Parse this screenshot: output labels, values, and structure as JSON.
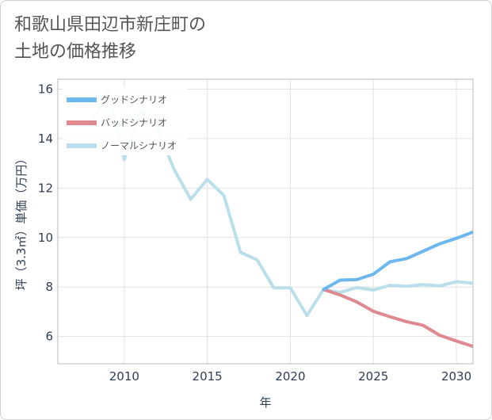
{
  "title_lines": [
    "和歌山県田辺市新庄町の",
    "土地の価格推移"
  ],
  "chart_data": {
    "type": "line",
    "xlabel": "年",
    "ylabel": "坪（3.3㎡）単価（万円）",
    "xlim": [
      2006,
      2031
    ],
    "ylim": [
      4.9,
      16.4
    ],
    "xticks": [
      2010,
      2015,
      2020,
      2025,
      2030
    ],
    "yticks": [
      6,
      8,
      10,
      12,
      14,
      16
    ],
    "grid": true,
    "legend_position": "top-left",
    "series": [
      {
        "name": "グッドシナリオ",
        "color": "#6cb8ee",
        "x": [
          2022,
          2023,
          2024,
          2025,
          2026,
          2027,
          2028,
          2029,
          2030,
          2031
        ],
        "y": [
          7.9,
          8.28,
          8.3,
          8.52,
          9.02,
          9.15,
          9.45,
          9.75,
          9.97,
          10.22
        ]
      },
      {
        "name": "バッドシナリオ",
        "color": "#de8a90",
        "x": [
          2022,
          2023,
          2024,
          2025,
          2026,
          2027,
          2028,
          2029,
          2030,
          2031
        ],
        "y": [
          7.9,
          7.68,
          7.4,
          7.02,
          6.8,
          6.6,
          6.45,
          6.05,
          5.82,
          5.6
        ]
      },
      {
        "name": "ノーマルシナリオ",
        "color": "#badfeb",
        "x": [
          2008,
          2009,
          2010,
          2011,
          2012,
          2013,
          2014,
          2015,
          2016,
          2017,
          2018,
          2019,
          2020,
          2021,
          2022,
          2023,
          2024,
          2025,
          2026,
          2027,
          2028,
          2029,
          2030,
          2031
        ],
        "y": [
          14.6,
          15.9,
          13.15,
          15.15,
          14.4,
          12.75,
          11.55,
          12.35,
          11.7,
          9.4,
          9.1,
          7.97,
          7.97,
          6.85,
          7.9,
          7.78,
          7.98,
          7.88,
          8.07,
          8.03,
          8.1,
          8.05,
          8.22,
          8.15
        ]
      }
    ]
  }
}
